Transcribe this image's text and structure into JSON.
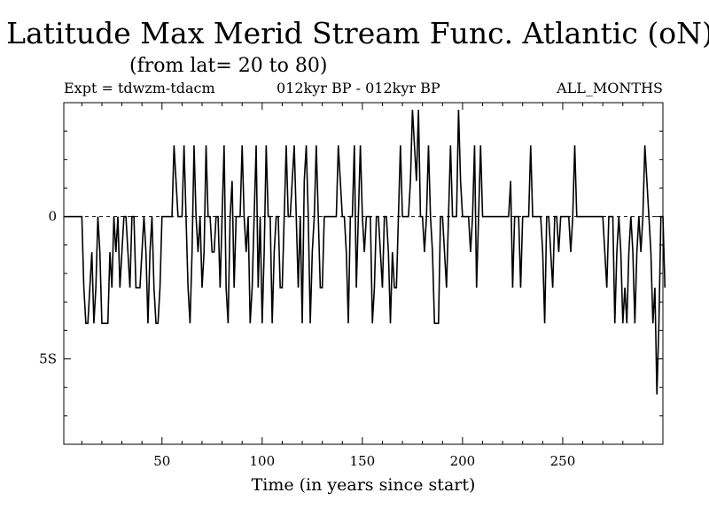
{
  "chart_data": {
    "type": "line",
    "title": "Latitude Max Merid Stream Func. Atlantic (oN)",
    "subtitle": "(from lat= 20 to 80)",
    "header_left": "Expt = tdwzm-tdacm",
    "header_center": "012kyr BP - 012kyr BP",
    "header_right": "ALL_MONTHS",
    "xlabel": "Time (in years since start)",
    "ylabel": "",
    "xlim": [
      1,
      300
    ],
    "ylim": [
      -8,
      4
    ],
    "x_ticks": [
      50,
      100,
      150,
      200,
      250
    ],
    "y_ticks": [
      {
        "value": 0,
        "label": "0"
      },
      {
        "value": -5,
        "label": "5S"
      }
    ],
    "grid": false,
    "reference_line_y": 0,
    "series": [
      {
        "values": [
          0,
          0,
          0,
          0,
          0,
          0,
          0,
          0,
          0,
          0,
          -2.5,
          -3.75,
          -3.75,
          -2.5,
          -1.25,
          -3.75,
          -2.5,
          0,
          -1.25,
          -3.75,
          -3.75,
          -3.75,
          -3.75,
          -1.25,
          -2.5,
          0,
          -1.25,
          0,
          -2.5,
          -1.25,
          0,
          0,
          -1.25,
          -2.5,
          0,
          0,
          -2.5,
          -2.5,
          -2.5,
          -1.25,
          0,
          -1.25,
          -3.75,
          -1.25,
          0,
          -2.5,
          -3.75,
          -3.75,
          -2.5,
          0,
          0,
          0,
          0,
          0,
          0,
          2.5,
          1.25,
          0,
          0,
          0,
          2.5,
          0,
          -2.5,
          -3.75,
          -1.25,
          2.5,
          0,
          -1.25,
          0,
          -2.5,
          -1.25,
          2.5,
          0,
          0,
          -1.25,
          -1.25,
          0,
          0,
          -2.5,
          0,
          2.5,
          -2.5,
          -3.75,
          0,
          1.25,
          -2.5,
          0,
          0,
          0,
          2.5,
          0,
          -1.25,
          0,
          -3.75,
          -2.5,
          0,
          2.5,
          -2.5,
          0,
          -3.75,
          -1.25,
          2.5,
          0,
          0,
          -3.75,
          -1.25,
          0,
          0,
          -2.5,
          -2.5,
          0,
          2.5,
          0,
          0,
          1.25,
          2.5,
          0,
          -2.5,
          0,
          -3.75,
          1.25,
          2.5,
          0,
          -3.75,
          -1.25,
          0,
          2.5,
          0,
          -2.5,
          -2.5,
          0,
          0,
          0,
          0,
          0,
          0,
          0,
          2.5,
          1.25,
          0,
          0,
          -1.25,
          -3.75,
          0,
          0,
          2.5,
          -2.5,
          0,
          2.5,
          0,
          -1.25,
          0,
          0,
          0,
          -3.75,
          -2.5,
          0,
          0,
          -1.25,
          -2.5,
          0,
          0,
          -1.25,
          -3.75,
          -1.25,
          -2.5,
          -2.5,
          0,
          2.5,
          0,
          0,
          0,
          0,
          1.25,
          3.75,
          2.5,
          1.25,
          3.75,
          0,
          0,
          -1.25,
          0,
          2.5,
          0,
          -1.25,
          -3.75,
          -3.75,
          -3.75,
          0,
          0,
          -1.25,
          -2.5,
          0,
          2.5,
          0,
          0,
          0,
          3.75,
          1.25,
          0,
          0,
          0,
          0,
          -1.25,
          0,
          2.5,
          -2.5,
          0,
          2.5,
          0,
          0,
          0,
          0,
          0,
          0,
          0,
          0,
          0,
          0,
          0,
          0,
          0,
          0,
          1.25,
          -2.5,
          0,
          0,
          0,
          -2.5,
          0,
          0,
          0,
          0,
          2.5,
          0,
          0,
          0,
          0,
          0,
          -1.25,
          -3.75,
          0,
          0,
          -1.25,
          -2.5,
          0,
          0,
          -1.25,
          0,
          0,
          0,
          0,
          0,
          -1.25,
          0,
          2.5,
          0,
          0,
          0,
          0,
          0,
          0,
          0,
          0,
          0,
          0,
          0,
          0,
          0,
          0,
          -1.25,
          -2.5,
          0,
          0,
          0,
          -3.75,
          -1.25,
          0,
          -1.25,
          -3.75,
          -2.5,
          -3.75,
          -1.25,
          0,
          -1.25,
          -3.75,
          -1.25,
          0,
          -1.25,
          0,
          2.5,
          1.25,
          0,
          -1.25,
          -3.75,
          -2.5,
          -6.25,
          -3.75,
          0,
          0,
          -2.5
        ]
      }
    ]
  }
}
